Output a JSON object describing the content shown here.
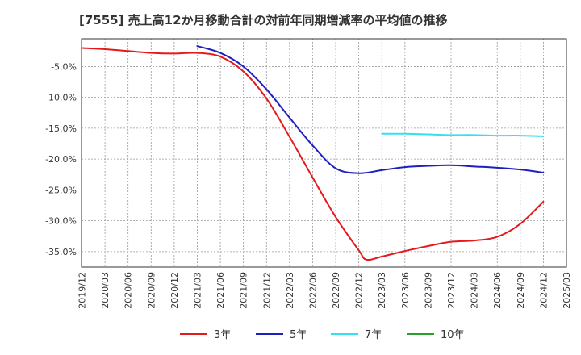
{
  "chart_data": {
    "type": "line",
    "title": "[7555]  売上高12か月移動合計の対前年同期増減率の平均値の推移",
    "xlabel": "",
    "ylabel": "",
    "x_ticks": [
      "2019/12",
      "2020/03",
      "2020/06",
      "2020/09",
      "2020/12",
      "2021/03",
      "2021/06",
      "2021/09",
      "2021/12",
      "2022/03",
      "2022/06",
      "2022/09",
      "2022/12",
      "2023/03",
      "2023/06",
      "2023/09",
      "2023/12",
      "2024/03",
      "2024/06",
      "2024/09",
      "2024/12",
      "2025/03"
    ],
    "ylim": [
      -37.5,
      -0.5
    ],
    "y_ticks": [
      -5,
      -10,
      -15,
      -20,
      -25,
      -30,
      -35
    ],
    "y_tick_labels": [
      "-5.0%",
      "-10.0%",
      "-15.0%",
      "-20.0%",
      "-25.0%",
      "-30.0%",
      "-35.0%"
    ],
    "grid": true,
    "legend_position": "bottom",
    "series": [
      {
        "name": "3年",
        "color": "#e31a1c",
        "x": [
          "2019/12",
          "2020/03",
          "2020/06",
          "2020/09",
          "2020/12",
          "2021/03",
          "2021/06",
          "2021/09",
          "2021/12",
          "2022/03",
          "2022/06",
          "2022/09",
          "2022/12",
          "2023/01",
          "2023/03",
          "2023/06",
          "2023/09",
          "2023/12",
          "2024/03",
          "2024/06",
          "2024/09",
          "2024/12"
        ],
        "values": [
          -2.0,
          -2.2,
          -2.5,
          -2.8,
          -2.9,
          -2.8,
          -3.4,
          -5.8,
          -10.2,
          -16.4,
          -23.0,
          -29.4,
          -34.8,
          -36.3,
          -35.8,
          -34.9,
          -34.1,
          -33.4,
          -33.2,
          -32.6,
          -30.5,
          -26.9
        ]
      },
      {
        "name": "5年",
        "color": "#1f1fbf",
        "x": [
          "2021/03",
          "2021/06",
          "2021/09",
          "2021/12",
          "2022/03",
          "2022/06",
          "2022/09",
          "2022/12",
          "2023/03",
          "2023/06",
          "2023/09",
          "2023/12",
          "2024/03",
          "2024/06",
          "2024/09",
          "2024/12"
        ],
        "values": [
          -1.7,
          -2.8,
          -5.0,
          -8.7,
          -13.3,
          -17.8,
          -21.5,
          -22.3,
          -21.8,
          -21.3,
          -21.1,
          -21.0,
          -21.2,
          -21.4,
          -21.7,
          -22.2
        ]
      },
      {
        "name": "7年",
        "color": "#33e0f0",
        "x": [
          "2023/03",
          "2023/06",
          "2023/09",
          "2023/12",
          "2024/03",
          "2024/06",
          "2024/09",
          "2024/12"
        ],
        "values": [
          -15.9,
          -15.9,
          -16.0,
          -16.1,
          -16.1,
          -16.2,
          -16.2,
          -16.3
        ]
      },
      {
        "name": "10年",
        "color": "#2ca02c",
        "x": [],
        "values": []
      }
    ]
  }
}
